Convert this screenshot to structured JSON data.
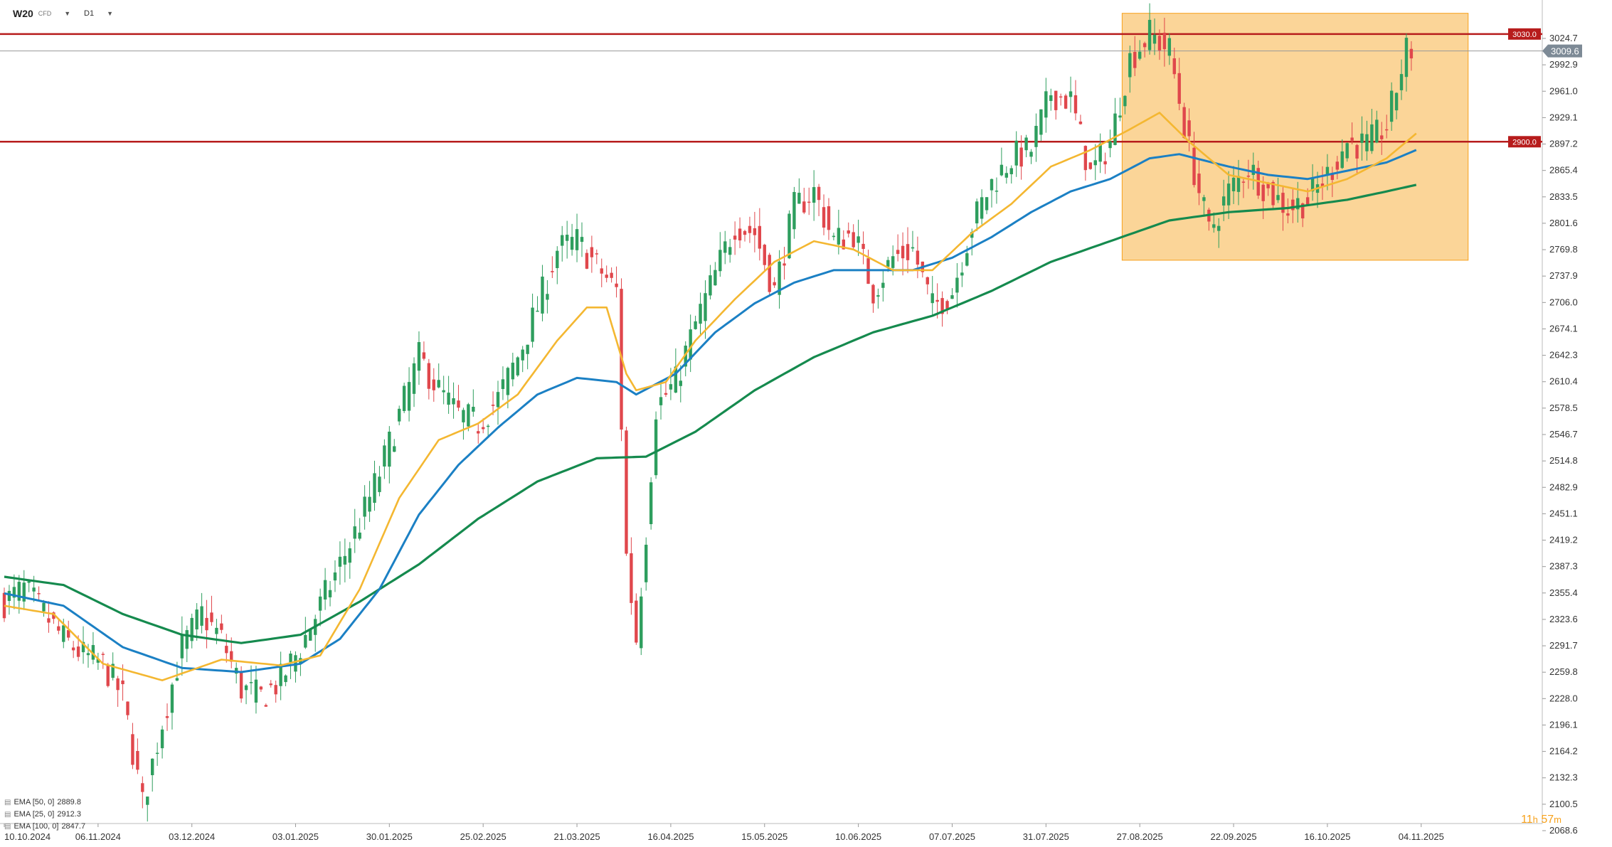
{
  "header": {
    "symbol": "W20",
    "symbol_suffix": "CFD",
    "timeframe": "D1"
  },
  "timer": {
    "hours": "11",
    "hours_unit": "h",
    "minutes": "57",
    "minutes_unit": "m"
  },
  "legend": [
    {
      "label": "EMA [50, 0]",
      "value": "2889.8"
    },
    {
      "label": "EMA [25, 0]",
      "value": "2912.3"
    },
    {
      "label": "EMA [100, 0]",
      "value": "2847.7"
    }
  ],
  "chart_data": {
    "type": "candlestick",
    "y_ticks": [
      "3024.7",
      "2992.9",
      "2961.0",
      "2929.1",
      "2897.2",
      "2865.4",
      "2833.5",
      "2801.6",
      "2769.8",
      "2737.9",
      "2706.0",
      "2674.1",
      "2642.3",
      "2610.4",
      "2578.5",
      "2546.7",
      "2514.8",
      "2482.9",
      "2451.1",
      "2419.2",
      "2387.3",
      "2355.4",
      "2323.6",
      "2291.7",
      "2259.8",
      "2228.0",
      "2196.1",
      "2164.2",
      "2132.3",
      "2100.5",
      "2068.6"
    ],
    "x_ticks": [
      "10.10.2024",
      "06.11.2024",
      "03.12.2024",
      "03.01.2025",
      "30.01.2025",
      "25.02.2025",
      "21.03.2025",
      "16.04.2025",
      "15.05.2025",
      "10.06.2025",
      "07.07.2025",
      "31.07.2025",
      "27.08.2025",
      "22.09.2025",
      "16.10.2025",
      "04.11.2025"
    ],
    "ylim": [
      2068.6,
      3024.7
    ],
    "last_price": "3009.6",
    "horizontal_levels": [
      {
        "label": "3030.0",
        "value": 3030.0,
        "color": "#b71c1c"
      },
      {
        "label": "2900.0",
        "value": 2900.0,
        "color": "#b71c1c"
      }
    ],
    "highlight_zone": {
      "from": "31.07.2025",
      "to": "~04.11.2025",
      "y_low": 2757,
      "y_high": 3055,
      "color": "#f7a11b"
    },
    "colors": {
      "up": "#2e9e5e",
      "down": "#e0474c",
      "ema25": "#f4b731",
      "ema50": "#1b80c4",
      "ema100": "#158a4e"
    },
    "series_anchors": {
      "price": [
        [
          0,
          2345
        ],
        [
          4,
          2360
        ],
        [
          8,
          2330
        ],
        [
          12,
          2300
        ],
        [
          16,
          2280
        ],
        [
          20,
          2270
        ],
        [
          24,
          2230
        ],
        [
          28,
          2100
        ],
        [
          32,
          2200
        ],
        [
          36,
          2290
        ],
        [
          40,
          2330
        ],
        [
          44,
          2300
        ],
        [
          48,
          2240
        ],
        [
          52,
          2230
        ],
        [
          56,
          2250
        ],
        [
          60,
          2290
        ],
        [
          64,
          2340
        ],
        [
          68,
          2390
        ],
        [
          72,
          2440
        ],
        [
          76,
          2500
        ],
        [
          80,
          2570
        ],
        [
          84,
          2640
        ],
        [
          88,
          2600
        ],
        [
          92,
          2570
        ],
        [
          96,
          2560
        ],
        [
          100,
          2590
        ],
        [
          104,
          2640
        ],
        [
          108,
          2700
        ],
        [
          112,
          2770
        ],
        [
          116,
          2780
        ],
        [
          120,
          2750
        ],
        [
          124,
          2720
        ],
        [
          126,
          2400
        ],
        [
          128,
          2300
        ],
        [
          130,
          2430
        ],
        [
          132,
          2580
        ],
        [
          136,
          2610
        ],
        [
          140,
          2680
        ],
        [
          144,
          2740
        ],
        [
          148,
          2800
        ],
        [
          152,
          2790
        ],
        [
          156,
          2720
        ],
        [
          160,
          2820
        ],
        [
          164,
          2840
        ],
        [
          168,
          2780
        ],
        [
          172,
          2790
        ],
        [
          176,
          2720
        ],
        [
          180,
          2760
        ],
        [
          184,
          2770
        ],
        [
          188,
          2700
        ],
        [
          192,
          2720
        ],
        [
          196,
          2800
        ],
        [
          200,
          2850
        ],
        [
          204,
          2880
        ],
        [
          208,
          2890
        ],
        [
          212,
          2960
        ],
        [
          216,
          2950
        ],
        [
          220,
          2860
        ],
        [
          224,
          2900
        ],
        [
          228,
          3000
        ],
        [
          232,
          3030
        ],
        [
          236,
          3010
        ],
        [
          240,
          2890
        ],
        [
          244,
          2790
        ],
        [
          248,
          2840
        ],
        [
          252,
          2870
        ],
        [
          256,
          2840
        ],
        [
          260,
          2820
        ],
        [
          264,
          2830
        ],
        [
          268,
          2860
        ],
        [
          272,
          2900
        ],
        [
          276,
          2895
        ],
        [
          280,
          2920
        ],
        [
          284,
          3010
        ]
      ],
      "ema25": [
        [
          0,
          2340
        ],
        [
          10,
          2330
        ],
        [
          20,
          2270
        ],
        [
          32,
          2250
        ],
        [
          44,
          2275
        ],
        [
          56,
          2268
        ],
        [
          64,
          2280
        ],
        [
          72,
          2360
        ],
        [
          80,
          2470
        ],
        [
          88,
          2540
        ],
        [
          96,
          2560
        ],
        [
          104,
          2595
        ],
        [
          112,
          2660
        ],
        [
          118,
          2700
        ],
        [
          122,
          2700
        ],
        [
          126,
          2620
        ],
        [
          128,
          2600
        ],
        [
          134,
          2610
        ],
        [
          140,
          2660
        ],
        [
          148,
          2710
        ],
        [
          156,
          2755
        ],
        [
          164,
          2780
        ],
        [
          172,
          2770
        ],
        [
          180,
          2745
        ],
        [
          188,
          2745
        ],
        [
          196,
          2790
        ],
        [
          204,
          2825
        ],
        [
          212,
          2870
        ],
        [
          220,
          2890
        ],
        [
          228,
          2915
        ],
        [
          234,
          2935
        ],
        [
          240,
          2900
        ],
        [
          248,
          2860
        ],
        [
          256,
          2850
        ],
        [
          264,
          2840
        ],
        [
          272,
          2855
        ],
        [
          280,
          2880
        ],
        [
          286,
          2910
        ]
      ],
      "ema50": [
        [
          0,
          2355
        ],
        [
          12,
          2340
        ],
        [
          24,
          2290
        ],
        [
          36,
          2265
        ],
        [
          48,
          2260
        ],
        [
          60,
          2270
        ],
        [
          68,
          2300
        ],
        [
          76,
          2360
        ],
        [
          84,
          2450
        ],
        [
          92,
          2510
        ],
        [
          100,
          2555
        ],
        [
          108,
          2595
        ],
        [
          116,
          2615
        ],
        [
          124,
          2610
        ],
        [
          128,
          2595
        ],
        [
          136,
          2620
        ],
        [
          144,
          2670
        ],
        [
          152,
          2705
        ],
        [
          160,
          2730
        ],
        [
          168,
          2745
        ],
        [
          176,
          2745
        ],
        [
          184,
          2745
        ],
        [
          192,
          2760
        ],
        [
          200,
          2785
        ],
        [
          208,
          2815
        ],
        [
          216,
          2840
        ],
        [
          224,
          2855
        ],
        [
          232,
          2880
        ],
        [
          238,
          2885
        ],
        [
          248,
          2870
        ],
        [
          256,
          2860
        ],
        [
          264,
          2855
        ],
        [
          272,
          2865
        ],
        [
          280,
          2875
        ],
        [
          286,
          2890
        ]
      ],
      "ema100": [
        [
          0,
          2375
        ],
        [
          12,
          2365
        ],
        [
          24,
          2330
        ],
        [
          36,
          2305
        ],
        [
          48,
          2295
        ],
        [
          60,
          2305
        ],
        [
          72,
          2345
        ],
        [
          84,
          2390
        ],
        [
          96,
          2445
        ],
        [
          108,
          2490
        ],
        [
          120,
          2518
        ],
        [
          130,
          2520
        ],
        [
          140,
          2550
        ],
        [
          152,
          2600
        ],
        [
          164,
          2640
        ],
        [
          176,
          2670
        ],
        [
          188,
          2690
        ],
        [
          200,
          2720
        ],
        [
          212,
          2755
        ],
        [
          224,
          2780
        ],
        [
          236,
          2805
        ],
        [
          248,
          2815
        ],
        [
          260,
          2820
        ],
        [
          272,
          2830
        ],
        [
          280,
          2840
        ],
        [
          286,
          2848
        ]
      ]
    }
  }
}
